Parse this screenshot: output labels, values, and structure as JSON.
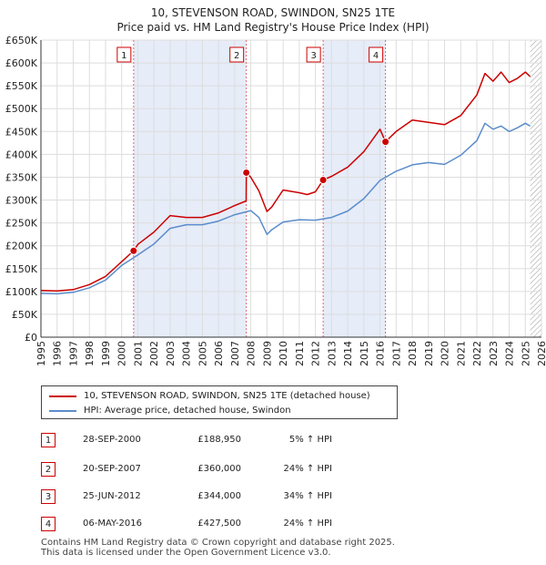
{
  "chart_data": {
    "type": "line",
    "title": "10, STEVENSON ROAD, SWINDON, SN25 1TE",
    "subtitle": "Price paid vs. HM Land Registry's House Price Index (HPI)",
    "xlabel": "",
    "ylabel": "",
    "xlim": [
      1995,
      2026
    ],
    "ylim": [
      0,
      650000
    ],
    "x_ticks": [
      "1995",
      "1996",
      "1997",
      "1998",
      "1999",
      "2000",
      "2001",
      "2002",
      "2003",
      "2004",
      "2005",
      "2006",
      "2007",
      "2008",
      "2009",
      "2010",
      "2011",
      "2012",
      "2013",
      "2014",
      "2015",
      "2016",
      "2017",
      "2018",
      "2019",
      "2020",
      "2021",
      "2022",
      "2023",
      "2024",
      "2025",
      "2026"
    ],
    "y_ticks": [
      "£0",
      "£50K",
      "£100K",
      "£150K",
      "£200K",
      "£250K",
      "£300K",
      "£350K",
      "£400K",
      "£450K",
      "£500K",
      "£550K",
      "£600K",
      "£650K"
    ],
    "series": [
      {
        "name": "10, STEVENSON ROAD, SWINDON, SN25 1TE (detached house)",
        "color": "#cc0000",
        "x": [
          1995,
          1996,
          1997,
          1998,
          1999,
          2000,
          2000.74,
          2001,
          2002,
          2003,
          2004,
          2005,
          2006,
          2007,
          2007.71,
          2007.72,
          2008,
          2008.5,
          2009,
          2009.3,
          2010,
          2011,
          2011.5,
          2012,
          2012.48,
          2013,
          2014,
          2015,
          2016,
          2016.34,
          2017,
          2018,
          2019,
          2020,
          2021,
          2022,
          2022.5,
          2023,
          2023.5,
          2024,
          2024.5,
          2025,
          2025.3
        ],
        "y": [
          102000,
          101000,
          104000,
          115000,
          133000,
          165000,
          188950,
          203000,
          230000,
          266000,
          262000,
          262000,
          272000,
          288000,
          298000,
          360000,
          350000,
          320000,
          275000,
          285000,
          322000,
          316000,
          312000,
          318000,
          344000,
          352000,
          372000,
          406000,
          455000,
          427500,
          450000,
          475000,
          470000,
          465000,
          485000,
          530000,
          577000,
          560000,
          580000,
          557000,
          566000,
          580000,
          570000
        ]
      },
      {
        "name": "HPI: Average price, detached house, Swindon",
        "color": "#5b8ccc",
        "x": [
          1995,
          1996,
          1997,
          1998,
          1999,
          2000,
          2001,
          2002,
          2003,
          2004,
          2005,
          2006,
          2007,
          2008,
          2008.5,
          2009,
          2009.3,
          2010,
          2011,
          2012,
          2013,
          2014,
          2015,
          2016,
          2017,
          2018,
          2019,
          2020,
          2021,
          2022,
          2022.5,
          2023,
          2023.5,
          2024,
          2024.5,
          2025,
          2025.3
        ],
        "y": [
          96000,
          95000,
          98000,
          108000,
          125000,
          157000,
          180000,
          204000,
          238000,
          246000,
          246000,
          254000,
          268000,
          277000,
          262000,
          225000,
          235000,
          252000,
          257000,
          256000,
          262000,
          276000,
          303000,
          343000,
          363000,
          377000,
          382000,
          378000,
          398000,
          430000,
          468000,
          455000,
          462000,
          450000,
          458000,
          468000,
          462000
        ]
      }
    ],
    "sales": [
      {
        "label": "1",
        "x": 2000.74,
        "y": 188950,
        "date": "28-SEP-2000",
        "price": "£188,950",
        "hpi": "5% ↑ HPI"
      },
      {
        "label": "2",
        "x": 2007.72,
        "y": 360000,
        "date": "20-SEP-2007",
        "price": "£360,000",
        "hpi": "24% ↑ HPI"
      },
      {
        "label": "3",
        "x": 2012.48,
        "y": 344000,
        "date": "25-JUN-2012",
        "price": "£344,000",
        "hpi": "34% ↑ HPI"
      },
      {
        "label": "4",
        "x": 2016.34,
        "y": 427500,
        "date": "06-MAY-2016",
        "price": "£427,500",
        "hpi": "24% ↑ HPI"
      }
    ],
    "shaded_ranges": [
      [
        2000.74,
        2007.72
      ],
      [
        2012.48,
        2016.34
      ]
    ],
    "future_hatch_from": 2025.3,
    "grid": true
  },
  "footer": {
    "line1": "Contains HM Land Registry data © Crown copyright and database right 2025.",
    "line2": "This data is licensed under the Open Government Licence v3.0."
  }
}
